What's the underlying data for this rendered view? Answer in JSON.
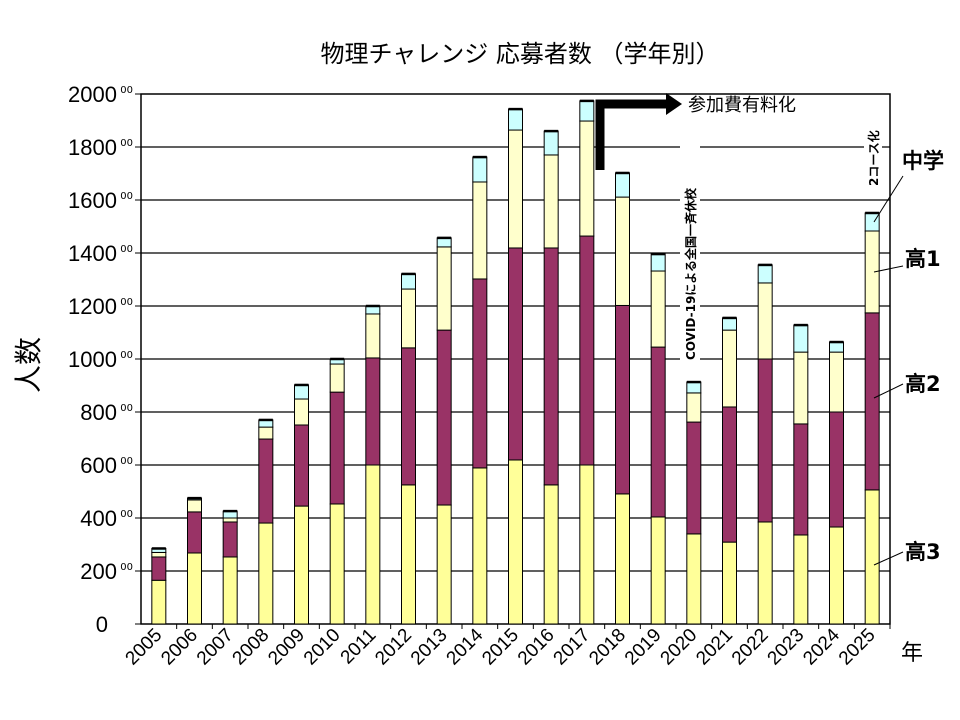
{
  "chart_data": {
    "type": "bar",
    "stacked": true,
    "title": "物理チャレンジ 応募者数 （学年別）",
    "ylabel": "人数",
    "xlabel": "年",
    "ylim": [
      0,
      2000
    ],
    "yticks": [
      "0",
      "200",
      "400",
      "600",
      "800",
      "1000",
      "1200",
      "1400",
      "1600",
      "1800",
      "2000"
    ],
    "ytick_suffix": "00",
    "grid": true,
    "categories": [
      "2005",
      "2006",
      "2007",
      "2008",
      "2009",
      "2010",
      "2011",
      "2012",
      "2013",
      "2014",
      "2015",
      "2016",
      "2017",
      "2018",
      "2019",
      "2020",
      "2021",
      "2022",
      "2023",
      "2024",
      "2025"
    ],
    "series": [
      {
        "name": "高3",
        "color": "#FFFF99",
        "values": [
          165,
          268,
          253,
          381,
          445,
          453,
          600,
          525,
          449,
          589,
          619,
          525,
          600,
          491,
          404,
          340,
          309,
          385,
          336,
          366,
          506
        ]
      },
      {
        "name": "高2",
        "color": "#993366",
        "values": [
          88,
          155,
          132,
          317,
          306,
          422,
          404,
          517,
          660,
          713,
          800,
          894,
          864,
          711,
          641,
          422,
          510,
          615,
          419,
          434,
          668
        ]
      },
      {
        "name": "高1",
        "color": "#FFFFCC",
        "values": [
          17,
          45,
          15,
          45,
          98,
          106,
          166,
          222,
          314,
          366,
          445,
          351,
          434,
          409,
          287,
          110,
          290,
          287,
          271,
          226,
          309
        ]
      },
      {
        "name": "中学",
        "color": "#CCFFFF",
        "values": [
          15,
          7,
          26,
          27,
          53,
          19,
          30,
          57,
          34,
          94,
          79,
          90,
          76,
          91,
          64,
          41,
          46,
          68,
          102,
          38,
          68
        ]
      }
    ],
    "annotations": {
      "fee": "参加費有料化",
      "covid": "COVID-19による全国一斉休校",
      "two_course": "2コース化"
    }
  }
}
